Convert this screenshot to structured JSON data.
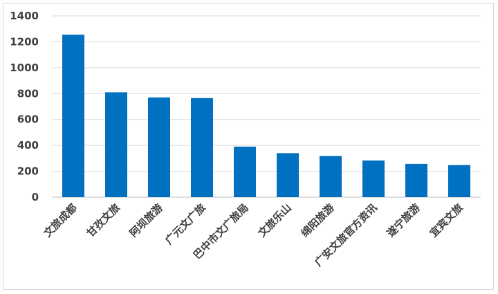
{
  "chart_data": {
    "type": "bar",
    "categories": [
      "文旅成都",
      "甘孜文旅",
      "阿坝旅游",
      "广元文广旅",
      "巴中市文广旅局",
      "文旅乐山",
      "绵阳旅游",
      "广安文旅官方资讯",
      "遂宁旅游",
      "宜宾文旅"
    ],
    "values": [
      1255,
      810,
      770,
      765,
      390,
      340,
      318,
      283,
      257,
      248
    ],
    "ylim": [
      0,
      1400
    ],
    "yticks": [
      0,
      200,
      400,
      600,
      800,
      1000,
      1200,
      1400
    ],
    "grid": true,
    "legend": "none",
    "bar_color": "#0070C0",
    "title": "",
    "xlabel": "",
    "ylabel": ""
  }
}
